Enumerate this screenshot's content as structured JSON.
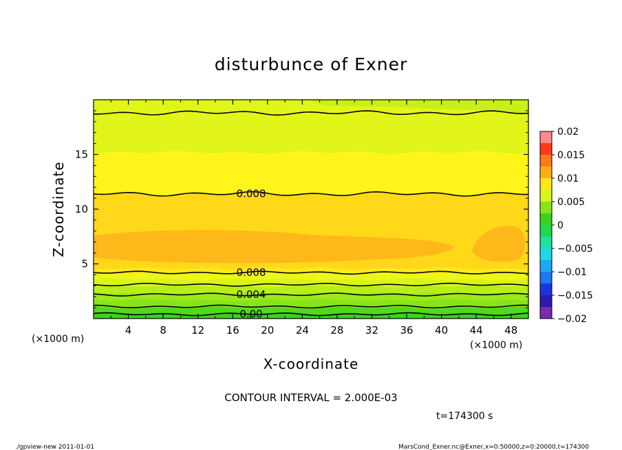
{
  "chart_data": {
    "type": "heatmap",
    "subtype": "filled-contour",
    "title": "disturbunce of Exner",
    "xlabel": "X-coordinate",
    "ylabel": "Z-coordinate",
    "x_unit": "(×1000 m)",
    "z_unit": "(×1000 m)",
    "xlim": [
      0,
      50
    ],
    "ylim": [
      0,
      20
    ],
    "x_ticks": [
      4,
      8,
      12,
      16,
      20,
      24,
      28,
      32,
      36,
      40,
      44,
      48
    ],
    "y_ticks": [
      5,
      10,
      15
    ],
    "contour_interval_text": "CONTOUR INTERVAL = 2.000E-03",
    "time_text": "t=174300 s",
    "colorbar": {
      "ticks": [
        "0.02",
        "0.015",
        "0.01",
        "0.005",
        "0",
        "−0.005",
        "−0.01",
        "−0.015",
        "−0.02"
      ],
      "levels": [
        {
          "from": -0.02,
          "to": -0.0175,
          "color": "#7a2bb3"
        },
        {
          "from": -0.0175,
          "to": -0.015,
          "color": "#2a1ab0"
        },
        {
          "from": -0.015,
          "to": -0.0125,
          "color": "#1a35e0"
        },
        {
          "from": -0.0125,
          "to": -0.01,
          "color": "#1e78f0"
        },
        {
          "from": -0.01,
          "to": -0.0075,
          "color": "#1ea8f5"
        },
        {
          "from": -0.0075,
          "to": -0.005,
          "color": "#1ed8e8"
        },
        {
          "from": -0.005,
          "to": -0.0025,
          "color": "#1ee2a0"
        },
        {
          "from": -0.0025,
          "to": 0,
          "color": "#1ed850"
        },
        {
          "from": 0,
          "to": 0.0025,
          "color": "#3ad21e"
        },
        {
          "from": 0.0025,
          "to": 0.005,
          "color": "#88e41a"
        },
        {
          "from": 0.005,
          "to": 0.0075,
          "color": "#d8f51a"
        },
        {
          "from": 0.0075,
          "to": 0.01,
          "color": "#ffe81a"
        },
        {
          "from": 0.01,
          "to": 0.0125,
          "color": "#ffae1a"
        },
        {
          "from": 0.0125,
          "to": 0.015,
          "color": "#ff781a"
        },
        {
          "from": 0.015,
          "to": 0.0175,
          "color": "#ff3a1a"
        },
        {
          "from": 0.0175,
          "to": 0.02,
          "color": "#ff8a8a"
        }
      ]
    },
    "field_bands": [
      {
        "z_from": 0.0,
        "z_to": 0.5,
        "value": 0.001,
        "color": "#3ad21e"
      },
      {
        "z_from": 0.5,
        "z_to": 1.0,
        "value": 0.002,
        "color": "#52d81c"
      },
      {
        "z_from": 1.0,
        "z_to": 1.7,
        "value": 0.003,
        "color": "#88e41a"
      },
      {
        "z_from": 1.7,
        "z_to": 2.3,
        "value": 0.004,
        "color": "#9ce81a"
      },
      {
        "z_from": 2.3,
        "z_to": 3.0,
        "value": 0.005,
        "color": "#b8ee1a"
      },
      {
        "z_from": 3.0,
        "z_to": 3.6,
        "value": 0.006,
        "color": "#d8f51a"
      },
      {
        "z_from": 3.6,
        "z_to": 4.2,
        "value": 0.007,
        "color": "#eef51a"
      },
      {
        "z_from": 4.2,
        "z_to": 4.6,
        "value": 0.0075,
        "color": "#ffe81a"
      },
      {
        "z_from": 4.6,
        "z_to": 11.4,
        "value": 0.009,
        "color": "#ffd81a"
      },
      {
        "z_from": 11.4,
        "z_to": 15.2,
        "value": 0.0075,
        "color": "#fff51a"
      },
      {
        "z_from": 15.2,
        "z_to": 20.0,
        "value": 0.006,
        "color": "#e2f51a"
      }
    ],
    "max_region_color": "#ffb81a",
    "contour_lines": [
      {
        "label": "0.00",
        "level": 0.0,
        "z": 0.4
      },
      {
        "label": "",
        "level": 0.002,
        "z": 1.1
      },
      {
        "label": "0.004",
        "level": 0.004,
        "z": 2.2
      },
      {
        "label": "",
        "level": 0.006,
        "z": 3.1
      },
      {
        "label": "0.008",
        "level": 0.008,
        "z": 4.2
      },
      {
        "label": "0.008",
        "level": 0.008,
        "z": 11.4
      },
      {
        "label": "",
        "level": 0.006,
        "z": 18.8
      }
    ]
  },
  "footer": {
    "left": "./gpview-new   2011-01-01",
    "right": "MarsCond_Exner.nc@Exner,x=0:50000,z=0:20000,t=174300"
  }
}
